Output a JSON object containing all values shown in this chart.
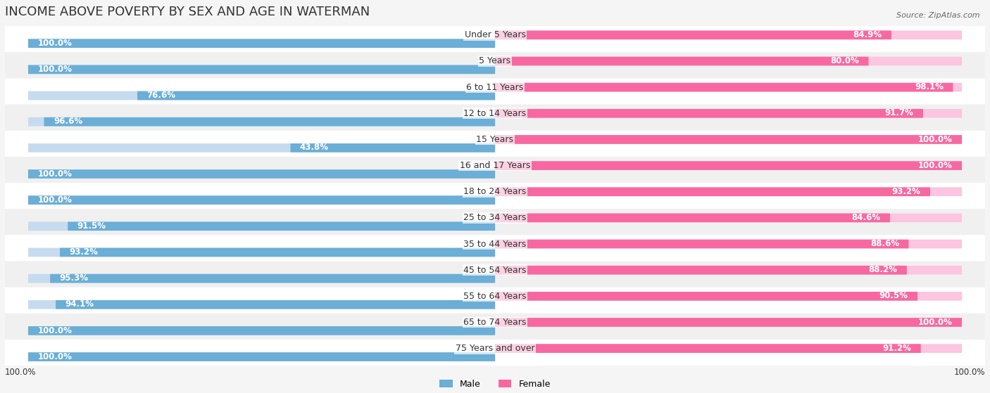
{
  "title": "INCOME ABOVE POVERTY BY SEX AND AGE IN WATERMAN",
  "source": "Source: ZipAtlas.com",
  "categories": [
    "Under 5 Years",
    "5 Years",
    "6 to 11 Years",
    "12 to 14 Years",
    "15 Years",
    "16 and 17 Years",
    "18 to 24 Years",
    "25 to 34 Years",
    "35 to 44 Years",
    "45 to 54 Years",
    "55 to 64 Years",
    "65 to 74 Years",
    "75 Years and over"
  ],
  "male_values": [
    100.0,
    100.0,
    76.6,
    96.6,
    43.8,
    100.0,
    100.0,
    91.5,
    93.2,
    95.3,
    94.1,
    100.0,
    100.0
  ],
  "female_values": [
    84.9,
    80.0,
    98.1,
    91.7,
    100.0,
    100.0,
    93.2,
    84.6,
    88.6,
    88.2,
    90.5,
    100.0,
    91.2
  ],
  "male_color": "#6baed6",
  "male_color_light": "#c6dbef",
  "female_color": "#f768a1",
  "female_color_light": "#fcc5e0",
  "bg_color": "#f5f5f5",
  "bar_bg_color": "#e8e8e8",
  "title_fontsize": 13,
  "label_fontsize": 9,
  "value_fontsize": 8.5,
  "legend_fontsize": 9,
  "source_fontsize": 8,
  "max_value": 100.0
}
